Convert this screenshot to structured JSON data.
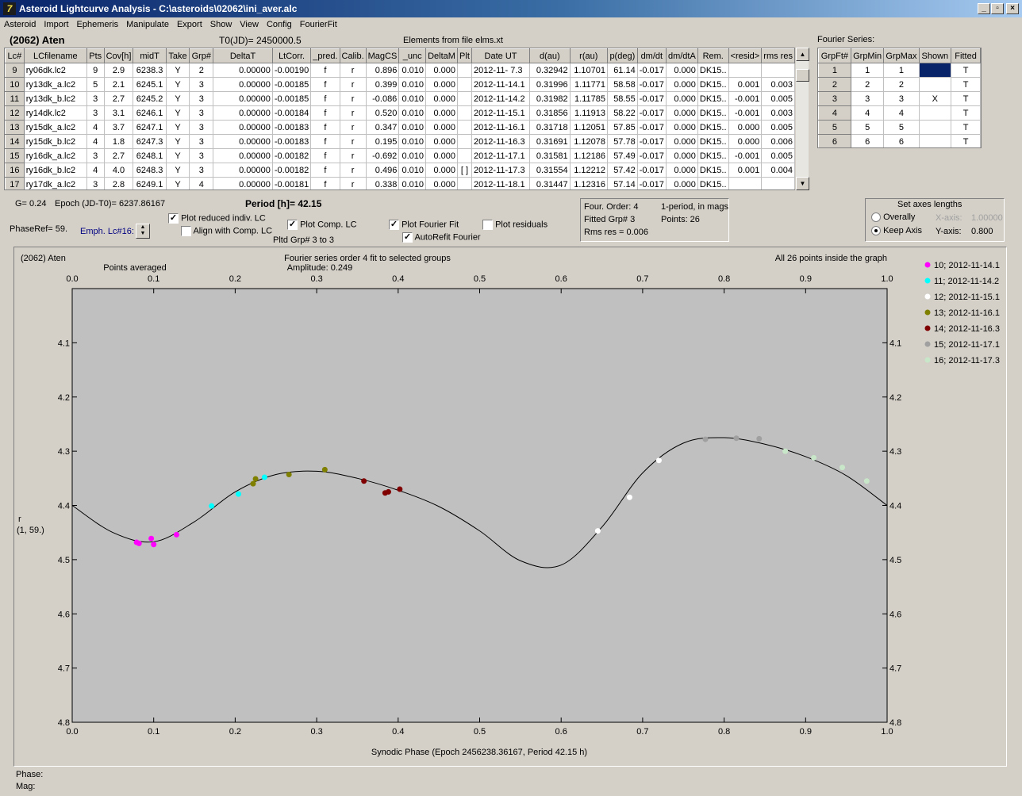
{
  "window": {
    "title": "Asteroid Lightcurve Analysis - C:\\asteroids\\02062\\ini_aver.alc",
    "icon": "app-logo-icon",
    "controls": [
      "minimize",
      "restore",
      "close"
    ]
  },
  "menu": [
    "Asteroid",
    "Import",
    "Ephemeris",
    "Manipulate",
    "Export",
    "Show",
    "View",
    "Config",
    "FourierFit"
  ],
  "header": {
    "asteroid": "(2062) Aten",
    "t0": "T0(JD)= 2450000.5",
    "elements": "Elements from file elms.xt",
    "fourier_series": "Fourier Series:"
  },
  "lc_table": {
    "columns": [
      "Lc#",
      "LCfilename",
      "Pts",
      "Cov[h]",
      "midT",
      "Take",
      "Grp#",
      "DeltaT",
      "LtCorr.",
      "_pred.",
      "Calib.",
      "MagCS",
      "_unc",
      "DeltaM",
      "Plt",
      "Date UT",
      "d(au)",
      "r(au)",
      "p(deg)",
      "dm/dt",
      "dm/dtA",
      "Rem.",
      "<resid>",
      "rms res"
    ],
    "rows": [
      [
        "9",
        "ry06dk.lc2",
        "9",
        "2.9",
        "6238.3",
        "Y",
        "2",
        "0.00000",
        "-0.00190",
        "f",
        "r",
        "0.896",
        "0.010",
        "0.000",
        "",
        "2012-11- 7.3",
        "0.32942",
        "1.10701",
        "61.14",
        "-0.017",
        "0.000",
        "DK15..",
        "",
        ""
      ],
      [
        "10",
        "ry13dk_a.lc2",
        "5",
        "2.1",
        "6245.1",
        "Y",
        "3",
        "0.00000",
        "-0.00185",
        "f",
        "r",
        "0.399",
        "0.010",
        "0.000",
        "",
        "2012-11-14.1",
        "0.31996",
        "1.11771",
        "58.58",
        "-0.017",
        "0.000",
        "DK15..",
        "0.001",
        "0.003"
      ],
      [
        "11",
        "ry13dk_b.lc2",
        "3",
        "2.7",
        "6245.2",
        "Y",
        "3",
        "0.00000",
        "-0.00185",
        "f",
        "r",
        "-0.086",
        "0.010",
        "0.000",
        "",
        "2012-11-14.2",
        "0.31982",
        "1.11785",
        "58.55",
        "-0.017",
        "0.000",
        "DK15..",
        "-0.001",
        "0.005"
      ],
      [
        "12",
        "ry14dk.lc2",
        "3",
        "3.1",
        "6246.1",
        "Y",
        "3",
        "0.00000",
        "-0.00184",
        "f",
        "r",
        "0.520",
        "0.010",
        "0.000",
        "",
        "2012-11-15.1",
        "0.31856",
        "1.11913",
        "58.22",
        "-0.017",
        "0.000",
        "DK15..",
        "-0.001",
        "0.003"
      ],
      [
        "13",
        "ry15dk_a.lc2",
        "4",
        "3.7",
        "6247.1",
        "Y",
        "3",
        "0.00000",
        "-0.00183",
        "f",
        "r",
        "0.347",
        "0.010",
        "0.000",
        "",
        "2012-11-16.1",
        "0.31718",
        "1.12051",
        "57.85",
        "-0.017",
        "0.000",
        "DK15..",
        "0.000",
        "0.005"
      ],
      [
        "14",
        "ry15dk_b.lc2",
        "4",
        "1.8",
        "6247.3",
        "Y",
        "3",
        "0.00000",
        "-0.00183",
        "f",
        "r",
        "0.195",
        "0.010",
        "0.000",
        "",
        "2012-11-16.3",
        "0.31691",
        "1.12078",
        "57.78",
        "-0.017",
        "0.000",
        "DK15..",
        "0.000",
        "0.006"
      ],
      [
        "15",
        "ry16dk_a.lc2",
        "3",
        "2.7",
        "6248.1",
        "Y",
        "3",
        "0.00000",
        "-0.00182",
        "f",
        "r",
        "-0.692",
        "0.010",
        "0.000",
        "",
        "2012-11-17.1",
        "0.31581",
        "1.12186",
        "57.49",
        "-0.017",
        "0.000",
        "DK15..",
        "-0.001",
        "0.005"
      ],
      [
        "16",
        "ry16dk_b.lc2",
        "4",
        "4.0",
        "6248.3",
        "Y",
        "3",
        "0.00000",
        "-0.00182",
        "f",
        "r",
        "0.496",
        "0.010",
        "0.000",
        "[ ]",
        "2012-11-17.3",
        "0.31554",
        "1.12212",
        "57.42",
        "-0.017",
        "0.000",
        "DK15..",
        "0.001",
        "0.004"
      ],
      [
        "17",
        "ry17dk_a.lc2",
        "3",
        "2.8",
        "6249.1",
        "Y",
        "4",
        "0.00000",
        "-0.00181",
        "f",
        "r",
        "0.338",
        "0.010",
        "0.000",
        "",
        "2012-11-18.1",
        "0.31447",
        "1.12316",
        "57.14",
        "-0.017",
        "0.000",
        "DK15..",
        "",
        ""
      ]
    ]
  },
  "fourier_table": {
    "columns": [
      "GrpFt#",
      "GrpMin",
      "GrpMax",
      "Shown",
      "Fitted"
    ],
    "rows": [
      [
        "1",
        "1",
        "1",
        "",
        "T"
      ],
      [
        "2",
        "2",
        "2",
        "",
        "T"
      ],
      [
        "3",
        "3",
        "3",
        "X",
        "T"
      ],
      [
        "4",
        "4",
        "4",
        "",
        "T"
      ],
      [
        "5",
        "5",
        "5",
        "",
        "T"
      ],
      [
        "6",
        "6",
        "6",
        "",
        "T"
      ]
    ]
  },
  "params": {
    "g": "G= 0.24",
    "epoch": "Epoch (JD-T0)= 6237.86167",
    "period": "Period [h]= 42.15",
    "phase_ref": "PhaseRef= 59.",
    "emph": "Emph. Lc#16:",
    "plot_reduced": "Plot reduced indiv. LC",
    "align_comp": "Align with Comp. LC",
    "plot_comp": "Plot Comp. LC",
    "pltd_grp": "Pltd Grp#  3  to   3",
    "plot_fourier": "Plot Fourier Fit",
    "autorefit": "AutoRefit Fourier",
    "plot_residuals": "Plot residuals",
    "plot_reduced_checked": true,
    "align_comp_checked": false,
    "plot_comp_checked": true,
    "plot_fourier_checked": true,
    "autorefit_checked": true,
    "plot_residuals_checked": false
  },
  "fit_info": {
    "order": "Four. Order:  4",
    "one_period": "1-period, in mags",
    "fitted_grp": "Fitted Grp# 3",
    "points": "Points: 26",
    "rms": "Rms res     = 0.006"
  },
  "axes_box": {
    "title": "Set axes lengths",
    "overally": "Overally",
    "keep_axis": "Keep Axis",
    "x_axis_label": "X-axis:",
    "x_axis_value": "1.00000",
    "y_axis_label": "Y-axis:",
    "y_axis_value": "0.800",
    "selected": "keep_axis"
  },
  "status": {
    "phase": "Phase:",
    "mag": "Mag:"
  },
  "chart_data": {
    "type": "scatter",
    "header_left": "(2062) Aten",
    "title": "Fourier series order 4 fit to selected groups",
    "subtitle": "Amplitude: 0.249",
    "header_right": "All 26 points inside the graph",
    "top_note": "Points averaged",
    "xlabel": "Synodic Phase (Epoch 2456238.36167, Period 42.15 h)",
    "ylabel": "r",
    "ylabel2": "(1, 59.)",
    "xlim": [
      0.0,
      1.0
    ],
    "ylim": [
      4.0,
      4.8
    ],
    "y_inverted": true,
    "xticks": [
      0.0,
      0.1,
      0.2,
      0.3,
      0.4,
      0.5,
      0.6,
      0.7,
      0.8,
      0.9,
      1.0
    ],
    "yticks": [
      4.1,
      4.2,
      4.3,
      4.4,
      4.5,
      4.6,
      4.7,
      4.8
    ],
    "legend_position": "right",
    "series": [
      {
        "name": "10; 2012-11-14.1",
        "color": "#ff00ff",
        "x": [
          0.079,
          0.082,
          0.097,
          0.1,
          0.128
        ],
        "y": [
          4.468,
          4.47,
          4.461,
          4.472,
          4.454
        ]
      },
      {
        "name": "11; 2012-11-14.2",
        "color": "#00ffff",
        "x": [
          0.171,
          0.204,
          0.236
        ],
        "y": [
          4.401,
          4.379,
          4.348
        ]
      },
      {
        "name": "12; 2012-11-15.1",
        "color": "#ffffff",
        "x": [
          0.645,
          0.684,
          0.72
        ],
        "y": [
          4.447,
          4.385,
          4.317
        ]
      },
      {
        "name": "13; 2012-11-16.1",
        "color": "#808000",
        "x": [
          0.222,
          0.225,
          0.266,
          0.31
        ],
        "y": [
          4.36,
          4.351,
          4.343,
          4.334
        ]
      },
      {
        "name": "14; 2012-11-16.3",
        "color": "#800000",
        "x": [
          0.358,
          0.384,
          0.388,
          0.402
        ],
        "y": [
          4.355,
          4.377,
          4.375,
          4.37
        ]
      },
      {
        "name": "15; 2012-11-17.1",
        "color": "#a0a0a0",
        "x": [
          0.777,
          0.815,
          0.843
        ],
        "y": [
          4.278,
          4.276,
          4.277
        ]
      },
      {
        "name": "16; 2012-11-17.3",
        "color": "#c8e6c8",
        "x": [
          0.875,
          0.91,
          0.945,
          0.975
        ],
        "y": [
          4.3,
          4.312,
          4.33,
          4.355
        ]
      }
    ],
    "fit_curve": {
      "x": [
        0.0,
        0.05,
        0.1,
        0.15,
        0.2,
        0.25,
        0.3,
        0.35,
        0.4,
        0.45,
        0.5,
        0.55,
        0.6,
        0.65,
        0.7,
        0.75,
        0.8,
        0.85,
        0.9,
        0.95,
        1.0
      ],
      "y": [
        4.4,
        4.45,
        4.467,
        4.43,
        4.375,
        4.343,
        4.337,
        4.35,
        4.372,
        4.402,
        4.447,
        4.502,
        4.51,
        4.44,
        4.34,
        4.285,
        4.275,
        4.287,
        4.31,
        4.345,
        4.4
      ]
    }
  }
}
